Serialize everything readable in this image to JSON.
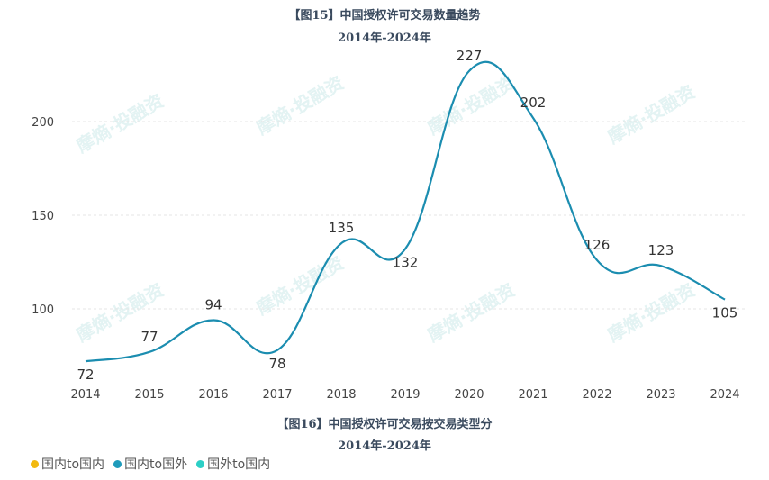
{
  "chart_data": {
    "type": "line",
    "title": "【图15】中国授权许可交易数量趋势",
    "subtitle": "2014年-2024年",
    "x": [
      "2014",
      "2015",
      "2016",
      "2017",
      "2018",
      "2019",
      "2020",
      "2021",
      "2022",
      "2023",
      "2024"
    ],
    "series": [
      {
        "values": [
          72,
          77,
          94,
          78,
          135,
          132,
          227,
          202,
          126,
          123,
          105
        ],
        "color": "#1b8db0"
      }
    ],
    "yticks": [
      100,
      150,
      200
    ],
    "ylim": [
      72,
      230
    ],
    "grid": true,
    "watermark": "摩熵·投融资"
  },
  "next_chart": {
    "title": "【图16】中国授权许可交易按交易类型分",
    "subtitle": "2014年-2024年",
    "legend": [
      {
        "label": "国内to国内",
        "color": "#f2b90f"
      },
      {
        "label": "国内to国外",
        "color": "#1e9bbb"
      },
      {
        "label": "国外to国内",
        "color": "#2ccfc6"
      }
    ]
  }
}
